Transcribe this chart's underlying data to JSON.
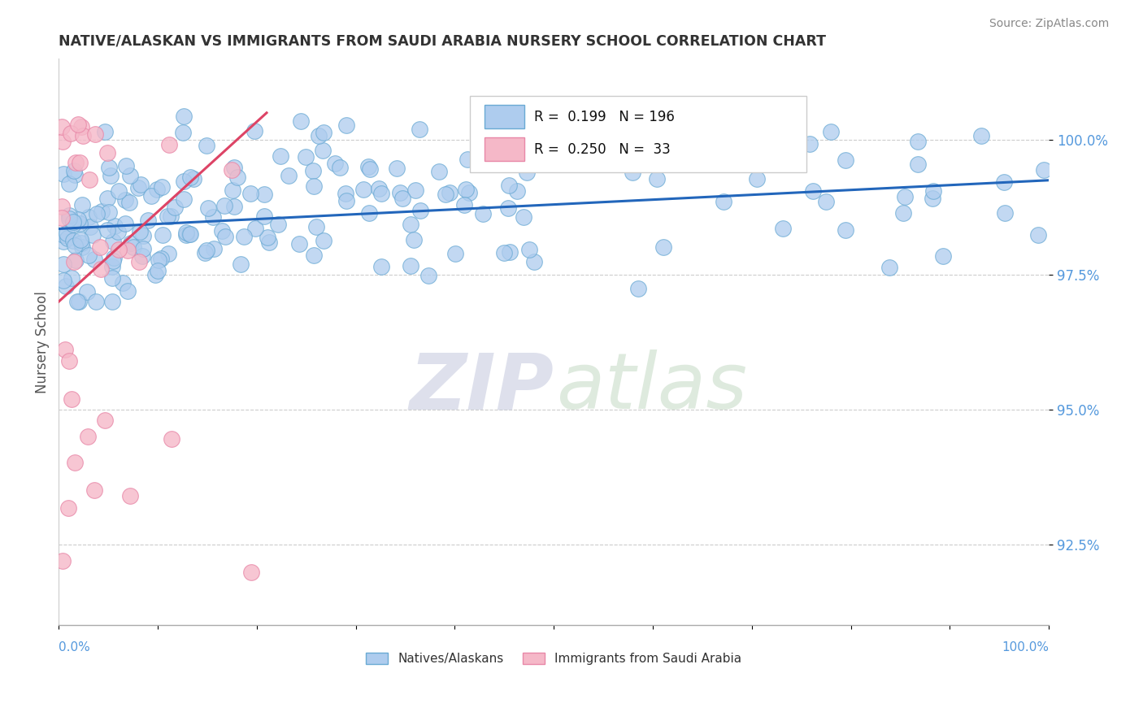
{
  "title": "NATIVE/ALASKAN VS IMMIGRANTS FROM SAUDI ARABIA NURSERY SCHOOL CORRELATION CHART",
  "source": "Source: ZipAtlas.com",
  "ylabel": "Nursery School",
  "yticks": [
    92.5,
    95.0,
    97.5,
    100.0
  ],
  "ytick_labels": [
    "92.5%",
    "95.0%",
    "97.5%",
    "100.0%"
  ],
  "xmin": 0.0,
  "xmax": 100.0,
  "ymin": 91.0,
  "ymax": 101.5,
  "legend_R_blue": "0.199",
  "legend_N_blue": "196",
  "legend_R_pink": "0.250",
  "legend_N_pink": "33",
  "blue_color": "#aeccee",
  "blue_edge": "#6aaad4",
  "pink_color": "#f5b8c8",
  "pink_edge": "#e888a8",
  "trend_blue": "#2266bb",
  "trend_pink": "#dd4466",
  "ytick_color": "#5599dd",
  "xtick_label_color": "#5599dd",
  "watermark_zip_color": "#c8cce0",
  "watermark_atlas_color": "#c8dcc8",
  "title_color": "#333333",
  "source_color": "#888888",
  "grid_color": "#cccccc",
  "blue_trend_y0": 98.35,
  "blue_trend_y1": 99.25,
  "pink_trend_x0": 0.0,
  "pink_trend_x1": 21.0,
  "pink_trend_y0": 97.0,
  "pink_trend_y1": 100.5
}
